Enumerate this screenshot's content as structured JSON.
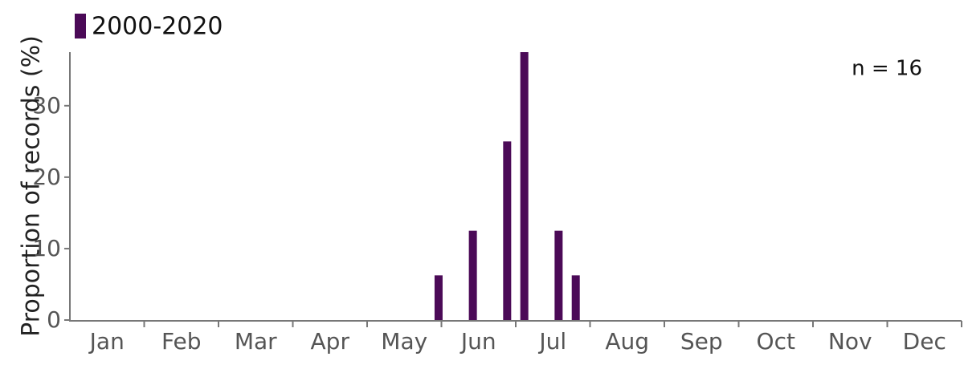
{
  "chart_data": {
    "type": "bar",
    "ylabel": "Proportion of records (%)",
    "annotation": "n = 16",
    "categories": [
      "Jan",
      "Feb",
      "Mar",
      "Apr",
      "May",
      "Jun",
      "Jul",
      "Aug",
      "Sep",
      "Oct",
      "Nov",
      "Dec"
    ],
    "xlim": [
      0,
      52
    ],
    "series": [
      {
        "name": "2000-2020",
        "color": "#4b0a57",
        "x": [
          21.5,
          23.5,
          25.5,
          26.5,
          28.5,
          29.5
        ],
        "values": [
          6.25,
          12.5,
          25,
          37.5,
          12.5,
          6.25
        ]
      }
    ],
    "ylim": [
      0,
      37.5
    ],
    "yticks": [
      0,
      10,
      20,
      30
    ],
    "grid": false
  }
}
